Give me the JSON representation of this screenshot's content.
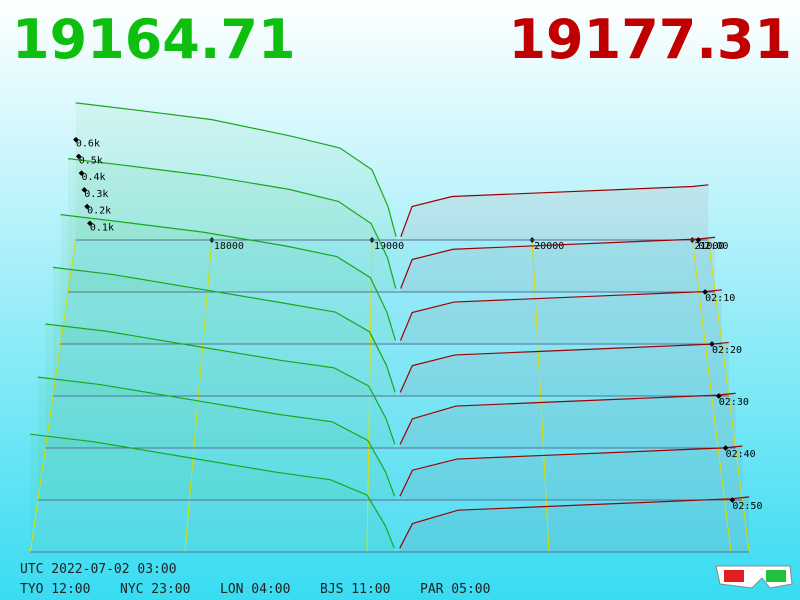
{
  "header": {
    "bid": "19164.71",
    "ask": "19177.31"
  },
  "chart_data": {
    "type": "depth3d",
    "xlim": [
      17150,
      21100
    ],
    "xticks": [
      18000,
      19000,
      20000,
      21000
    ],
    "tlim": [
      0,
      60
    ],
    "tticks": [
      {
        "value": 0,
        "label": "02:00"
      },
      {
        "value": 10,
        "label": "02:10"
      },
      {
        "value": 20,
        "label": "02:20"
      },
      {
        "value": 30,
        "label": "02:30"
      },
      {
        "value": 40,
        "label": "02:40"
      },
      {
        "value": 50,
        "label": "02:50"
      }
    ],
    "zlim": [
      0,
      1
    ],
    "zticks": [
      {
        "value": 0.1,
        "label": "0.1k"
      },
      {
        "value": 0.2,
        "label": "0.2k"
      },
      {
        "value": 0.3,
        "label": "0.3k"
      },
      {
        "value": 0.4,
        "label": "0.4k"
      },
      {
        "value": 0.5,
        "label": "0.5k"
      },
      {
        "value": 0.6,
        "label": "0.6k"
      }
    ],
    "bid_color": "#1aa81a",
    "ask_color": "#a00000",
    "bid_prices": [
      17150,
      17500,
      18000,
      18500,
      18800,
      19000,
      19100,
      19150
    ],
    "ask_prices": [
      19180,
      19250,
      19500,
      20000,
      20500,
      21000,
      21100
    ],
    "snapshots": [
      {
        "minutes": 0,
        "bids": [
          0.82,
          0.78,
          0.72,
          0.62,
          0.55,
          0.42,
          0.2,
          0.02
        ],
        "asks": [
          0.02,
          0.2,
          0.26,
          0.28,
          0.3,
          0.32,
          0.33
        ]
      },
      {
        "minutes": 10,
        "bids": [
          0.78,
          0.74,
          0.68,
          0.6,
          0.53,
          0.4,
          0.2,
          0.02
        ],
        "asks": [
          0.02,
          0.19,
          0.25,
          0.27,
          0.29,
          0.31,
          0.32
        ]
      },
      {
        "minutes": 20,
        "bids": [
          0.74,
          0.7,
          0.64,
          0.56,
          0.5,
          0.38,
          0.18,
          0.02
        ],
        "asks": [
          0.02,
          0.18,
          0.24,
          0.26,
          0.28,
          0.3,
          0.31
        ]
      },
      {
        "minutes": 30,
        "bids": [
          0.72,
          0.68,
          0.6,
          0.52,
          0.47,
          0.36,
          0.17,
          0.02
        ],
        "asks": [
          0.02,
          0.17,
          0.23,
          0.25,
          0.27,
          0.29,
          0.3
        ]
      },
      {
        "minutes": 40,
        "bids": [
          0.68,
          0.64,
          0.56,
          0.48,
          0.44,
          0.34,
          0.16,
          0.02
        ],
        "asks": [
          0.02,
          0.16,
          0.23,
          0.25,
          0.27,
          0.29,
          0.3
        ]
      },
      {
        "minutes": 50,
        "bids": [
          0.66,
          0.62,
          0.54,
          0.46,
          0.42,
          0.32,
          0.15,
          0.02
        ],
        "asks": [
          0.02,
          0.16,
          0.22,
          0.24,
          0.26,
          0.28,
          0.29
        ]
      },
      {
        "minutes": 60,
        "bids": [
          0.62,
          0.58,
          0.5,
          0.42,
          0.38,
          0.3,
          0.14,
          0.02
        ],
        "asks": [
          0.02,
          0.15,
          0.22,
          0.24,
          0.26,
          0.28,
          0.29
        ]
      }
    ]
  },
  "footer": {
    "utc": "UTC 2022-07-02 03:00",
    "zones": [
      "TYO 12:00",
      "NYC 23:00",
      "LON 04:00",
      "BJS 11:00",
      "PAR 05:00"
    ]
  }
}
